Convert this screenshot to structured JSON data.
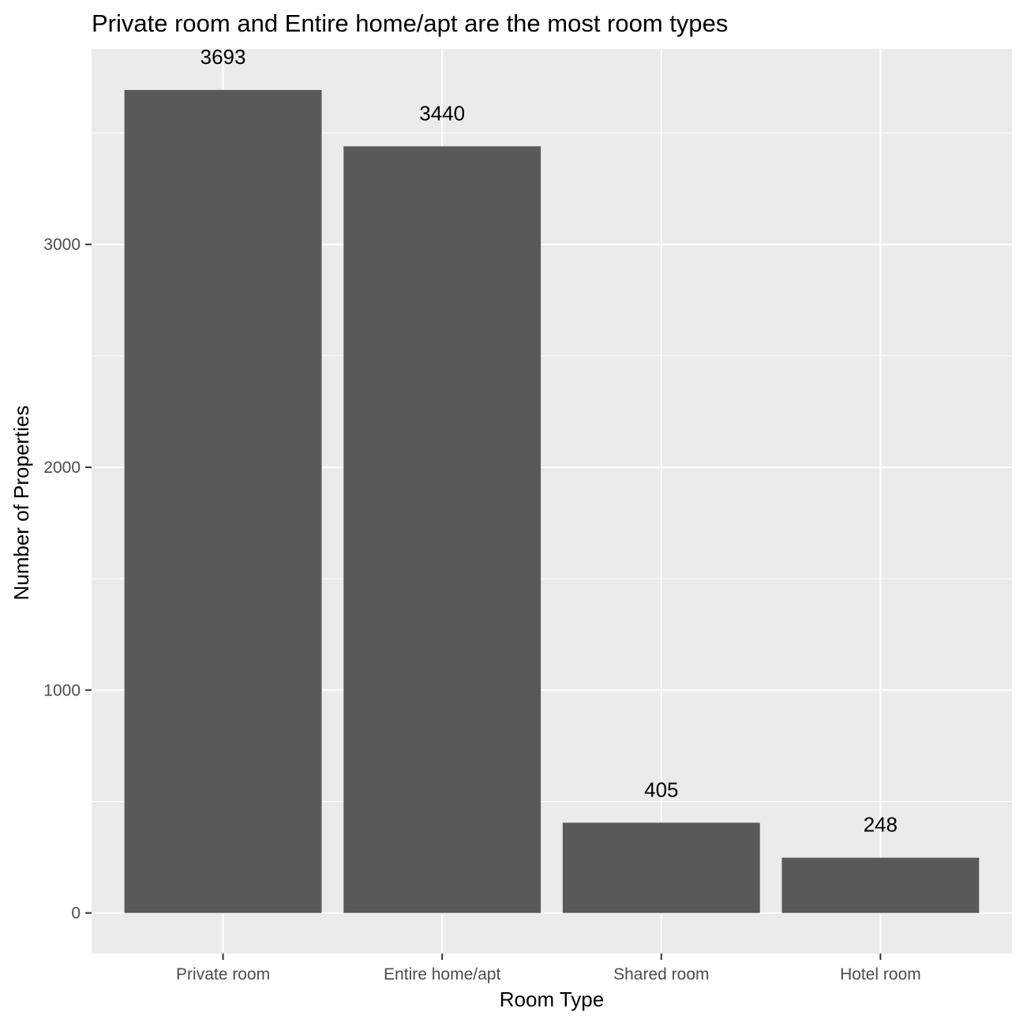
{
  "chart_data": {
    "type": "bar",
    "title": "Private room and Entire home/apt are the most room types",
    "xlabel": "Room Type",
    "ylabel": "Number of Properties",
    "categories": [
      "Private room",
      "Entire home/apt",
      "Shared room",
      "Hotel room"
    ],
    "values": [
      3693,
      3440,
      405,
      248
    ],
    "data_labels": [
      "3693",
      "3440",
      "405",
      "248"
    ],
    "y_ticks": [
      0,
      1000,
      2000,
      3000
    ],
    "y_tick_labels": [
      "0",
      "1000",
      "2000",
      "3000"
    ],
    "ylim": [
      -182,
      3877
    ],
    "grid": true,
    "legend": "none",
    "colors": {
      "bar": "#595959",
      "panel_background": "#EBEBEB",
      "grid": "#FFFFFF"
    }
  }
}
